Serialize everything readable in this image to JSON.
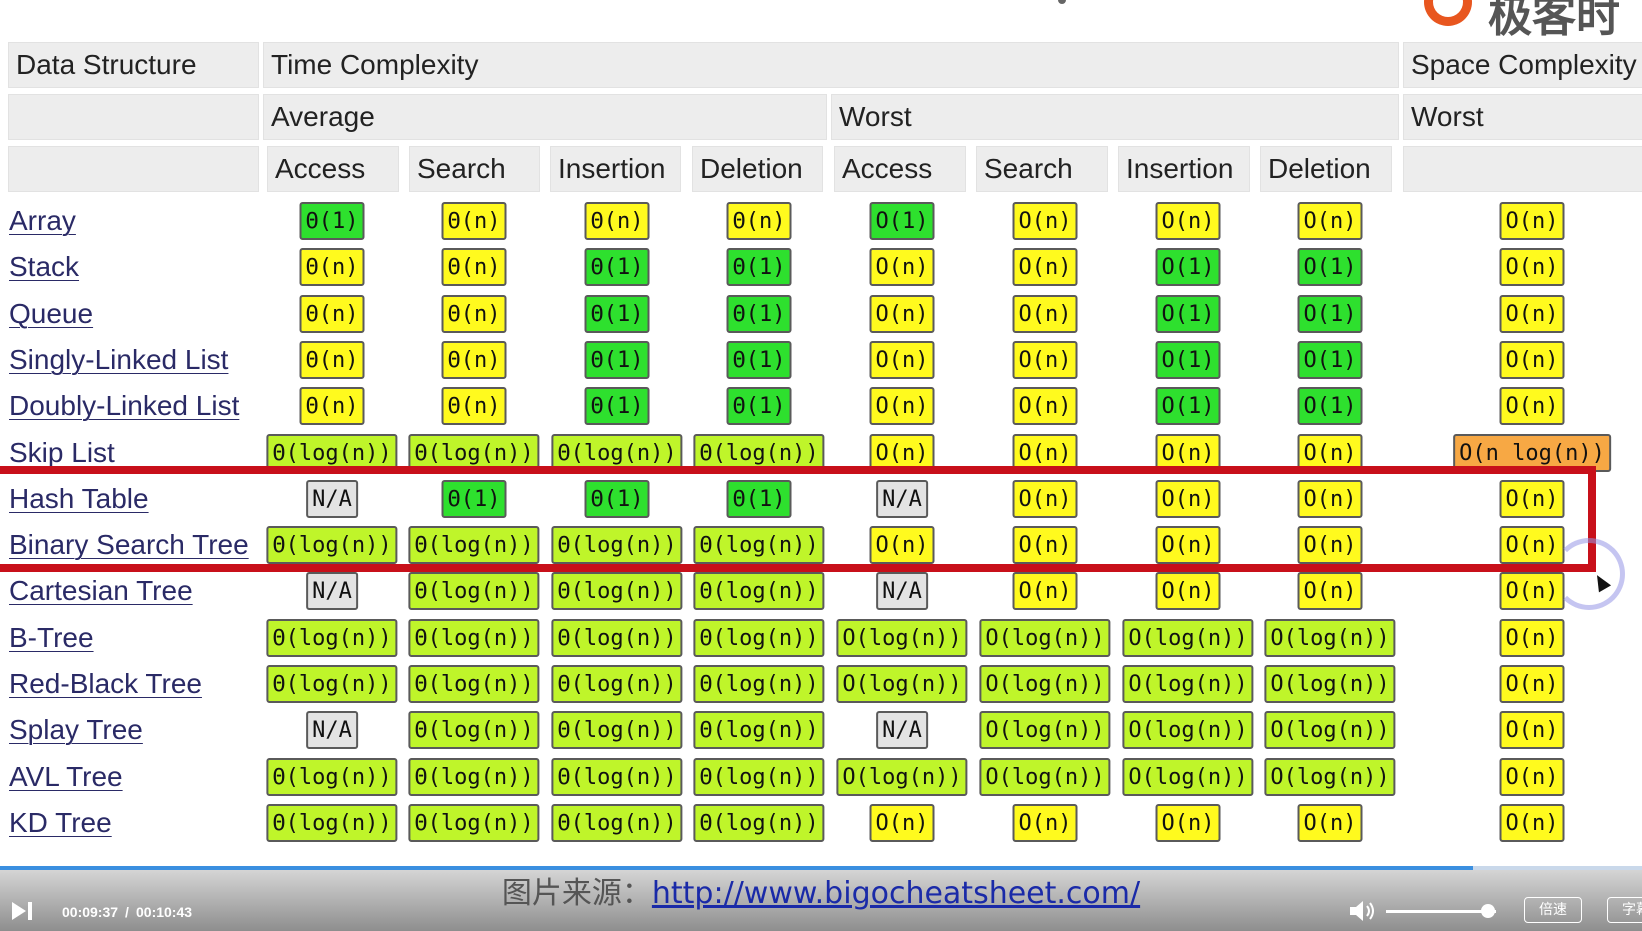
{
  "logo": {
    "text": "极客时"
  },
  "headers": {
    "row1": {
      "data_structure": "Data Structure",
      "time_complexity": "Time Complexity",
      "space_complexity": "Space Complexity"
    },
    "row2": {
      "average": "Average",
      "worst": "Worst",
      "space_worst": "Worst"
    },
    "row3": [
      "Access",
      "Search",
      "Insertion",
      "Deletion",
      "Access",
      "Search",
      "Insertion",
      "Deletion"
    ]
  },
  "rows": [
    {
      "name": "Array",
      "cells": [
        [
          "Θ(1)",
          "green"
        ],
        [
          "Θ(n)",
          "yellow"
        ],
        [
          "Θ(n)",
          "yellow"
        ],
        [
          "Θ(n)",
          "yellow"
        ],
        [
          "O(1)",
          "green"
        ],
        [
          "O(n)",
          "yellow"
        ],
        [
          "O(n)",
          "yellow"
        ],
        [
          "O(n)",
          "yellow"
        ],
        [
          "O(n)",
          "yellow"
        ]
      ]
    },
    {
      "name": "Stack",
      "cells": [
        [
          "Θ(n)",
          "yellow"
        ],
        [
          "Θ(n)",
          "yellow"
        ],
        [
          "Θ(1)",
          "green"
        ],
        [
          "Θ(1)",
          "green"
        ],
        [
          "O(n)",
          "yellow"
        ],
        [
          "O(n)",
          "yellow"
        ],
        [
          "O(1)",
          "green"
        ],
        [
          "O(1)",
          "green"
        ],
        [
          "O(n)",
          "yellow"
        ]
      ]
    },
    {
      "name": "Queue",
      "cells": [
        [
          "Θ(n)",
          "yellow"
        ],
        [
          "Θ(n)",
          "yellow"
        ],
        [
          "Θ(1)",
          "green"
        ],
        [
          "Θ(1)",
          "green"
        ],
        [
          "O(n)",
          "yellow"
        ],
        [
          "O(n)",
          "yellow"
        ],
        [
          "O(1)",
          "green"
        ],
        [
          "O(1)",
          "green"
        ],
        [
          "O(n)",
          "yellow"
        ]
      ]
    },
    {
      "name": "Singly-Linked List",
      "cells": [
        [
          "Θ(n)",
          "yellow"
        ],
        [
          "Θ(n)",
          "yellow"
        ],
        [
          "Θ(1)",
          "green"
        ],
        [
          "Θ(1)",
          "green"
        ],
        [
          "O(n)",
          "yellow"
        ],
        [
          "O(n)",
          "yellow"
        ],
        [
          "O(1)",
          "green"
        ],
        [
          "O(1)",
          "green"
        ],
        [
          "O(n)",
          "yellow"
        ]
      ]
    },
    {
      "name": "Doubly-Linked List",
      "cells": [
        [
          "Θ(n)",
          "yellow"
        ],
        [
          "Θ(n)",
          "yellow"
        ],
        [
          "Θ(1)",
          "green"
        ],
        [
          "Θ(1)",
          "green"
        ],
        [
          "O(n)",
          "yellow"
        ],
        [
          "O(n)",
          "yellow"
        ],
        [
          "O(1)",
          "green"
        ],
        [
          "O(1)",
          "green"
        ],
        [
          "O(n)",
          "yellow"
        ]
      ]
    },
    {
      "name": "Skip List",
      "cells": [
        [
          "Θ(log(n))",
          "lime"
        ],
        [
          "Θ(log(n))",
          "lime"
        ],
        [
          "Θ(log(n))",
          "lime"
        ],
        [
          "Θ(log(n))",
          "lime"
        ],
        [
          "O(n)",
          "yellow"
        ],
        [
          "O(n)",
          "yellow"
        ],
        [
          "O(n)",
          "yellow"
        ],
        [
          "O(n)",
          "yellow"
        ],
        [
          "O(n log(n))",
          "orange"
        ]
      ]
    },
    {
      "name": "Hash Table",
      "cells": [
        [
          "N/A",
          "gray"
        ],
        [
          "Θ(1)",
          "green"
        ],
        [
          "Θ(1)",
          "green"
        ],
        [
          "Θ(1)",
          "green"
        ],
        [
          "N/A",
          "gray"
        ],
        [
          "O(n)",
          "yellow"
        ],
        [
          "O(n)",
          "yellow"
        ],
        [
          "O(n)",
          "yellow"
        ],
        [
          "O(n)",
          "yellow"
        ]
      ]
    },
    {
      "name": "Binary Search Tree",
      "cells": [
        [
          "Θ(log(n))",
          "lime"
        ],
        [
          "Θ(log(n))",
          "lime"
        ],
        [
          "Θ(log(n))",
          "lime"
        ],
        [
          "Θ(log(n))",
          "lime"
        ],
        [
          "O(n)",
          "yellow"
        ],
        [
          "O(n)",
          "yellow"
        ],
        [
          "O(n)",
          "yellow"
        ],
        [
          "O(n)",
          "yellow"
        ],
        [
          "O(n)",
          "yellow"
        ]
      ]
    },
    {
      "name": "Cartesian Tree",
      "cells": [
        [
          "N/A",
          "gray"
        ],
        [
          "Θ(log(n))",
          "lime"
        ],
        [
          "Θ(log(n))",
          "lime"
        ],
        [
          "Θ(log(n))",
          "lime"
        ],
        [
          "N/A",
          "gray"
        ],
        [
          "O(n)",
          "yellow"
        ],
        [
          "O(n)",
          "yellow"
        ],
        [
          "O(n)",
          "yellow"
        ],
        [
          "O(n)",
          "yellow"
        ]
      ]
    },
    {
      "name": "B-Tree",
      "cells": [
        [
          "Θ(log(n))",
          "lime"
        ],
        [
          "Θ(log(n))",
          "lime"
        ],
        [
          "Θ(log(n))",
          "lime"
        ],
        [
          "Θ(log(n))",
          "lime"
        ],
        [
          "O(log(n))",
          "lime"
        ],
        [
          "O(log(n))",
          "lime"
        ],
        [
          "O(log(n))",
          "lime"
        ],
        [
          "O(log(n))",
          "lime"
        ],
        [
          "O(n)",
          "yellow"
        ]
      ]
    },
    {
      "name": "Red-Black Tree",
      "cells": [
        [
          "Θ(log(n))",
          "lime"
        ],
        [
          "Θ(log(n))",
          "lime"
        ],
        [
          "Θ(log(n))",
          "lime"
        ],
        [
          "Θ(log(n))",
          "lime"
        ],
        [
          "O(log(n))",
          "lime"
        ],
        [
          "O(log(n))",
          "lime"
        ],
        [
          "O(log(n))",
          "lime"
        ],
        [
          "O(log(n))",
          "lime"
        ],
        [
          "O(n)",
          "yellow"
        ]
      ]
    },
    {
      "name": "Splay Tree",
      "cells": [
        [
          "N/A",
          "gray"
        ],
        [
          "Θ(log(n))",
          "lime"
        ],
        [
          "Θ(log(n))",
          "lime"
        ],
        [
          "Θ(log(n))",
          "lime"
        ],
        [
          "N/A",
          "gray"
        ],
        [
          "O(log(n))",
          "lime"
        ],
        [
          "O(log(n))",
          "lime"
        ],
        [
          "O(log(n))",
          "lime"
        ],
        [
          "O(n)",
          "yellow"
        ]
      ]
    },
    {
      "name": "AVL Tree",
      "cells": [
        [
          "Θ(log(n))",
          "lime"
        ],
        [
          "Θ(log(n))",
          "lime"
        ],
        [
          "Θ(log(n))",
          "lime"
        ],
        [
          "Θ(log(n))",
          "lime"
        ],
        [
          "O(log(n))",
          "lime"
        ],
        [
          "O(log(n))",
          "lime"
        ],
        [
          "O(log(n))",
          "lime"
        ],
        [
          "O(log(n))",
          "lime"
        ],
        [
          "O(n)",
          "yellow"
        ]
      ]
    },
    {
      "name": "KD Tree",
      "cells": [
        [
          "Θ(log(n))",
          "lime"
        ],
        [
          "Θ(log(n))",
          "lime"
        ],
        [
          "Θ(log(n))",
          "lime"
        ],
        [
          "Θ(log(n))",
          "lime"
        ],
        [
          "O(n)",
          "yellow"
        ],
        [
          "O(n)",
          "yellow"
        ],
        [
          "O(n)",
          "yellow"
        ],
        [
          "O(n)",
          "yellow"
        ],
        [
          "O(n)",
          "yellow"
        ]
      ]
    }
  ],
  "highlighted_rows": [
    "Hash Table",
    "Binary Search Tree"
  ],
  "colors": {
    "green": "#2ee02e",
    "lime": "#bff52a",
    "yellow": "#fffa1e",
    "orange": "#f7a844",
    "gray": "#e3e3e3",
    "highlight": "#c8101a"
  },
  "caption": {
    "prefix": "图片来源：",
    "link": "http://www.bigocheatsheet.com/"
  },
  "player": {
    "time_current": "00:09:37",
    "time_separator": "/",
    "time_total": "00:10:43",
    "progress": 0.897,
    "volume": 0.86,
    "speed_label": "倍速",
    "subtitle_label": "字幕",
    "play_icon": "play-next-icon",
    "volume_icon": "speaker-icon"
  }
}
